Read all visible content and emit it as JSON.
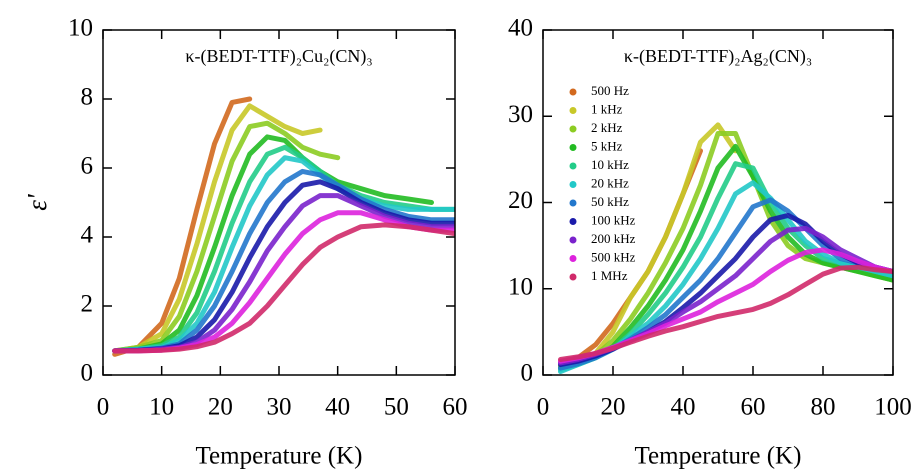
{
  "chart_data": [
    {
      "type": "line",
      "title": "κ-(BEDT-TTF)₂Cu₂(CN)₃",
      "xlabel": "Temperature (K)",
      "ylabel": "ε'",
      "xlim": [
        0,
        60
      ],
      "ylim": [
        0,
        10
      ],
      "xticks": [
        0,
        10,
        20,
        30,
        40,
        50,
        60
      ],
      "yticks": [
        0,
        2,
        4,
        6,
        8,
        10
      ],
      "x": [
        2,
        6,
        10,
        13,
        16,
        19,
        22,
        25,
        28,
        31,
        34,
        37,
        40,
        44,
        48,
        52,
        56,
        60
      ],
      "series": [
        {
          "color": "#d2691e",
          "values": [
            0.6,
            0.8,
            1.5,
            2.8,
            4.8,
            6.7,
            7.9,
            8.0,
            null,
            null,
            null,
            null,
            null,
            null,
            null,
            null,
            null,
            null
          ]
        },
        {
          "color": "#c8c828",
          "values": [
            0.7,
            0.8,
            1.2,
            2.2,
            3.8,
            5.6,
            7.1,
            7.8,
            7.5,
            7.2,
            7.0,
            7.1,
            null,
            null,
            null,
            null,
            null,
            null
          ]
        },
        {
          "color": "#8ccc22",
          "values": [
            0.7,
            0.8,
            1.0,
            1.7,
            3.0,
            4.6,
            6.2,
            7.2,
            7.3,
            7.0,
            6.6,
            6.4,
            6.3,
            null,
            null,
            null,
            null,
            null
          ]
        },
        {
          "color": "#22bb22",
          "values": [
            0.7,
            0.75,
            0.9,
            1.3,
            2.3,
            3.7,
            5.2,
            6.4,
            6.9,
            6.8,
            6.3,
            5.9,
            5.6,
            5.4,
            5.2,
            5.1,
            5.0,
            null
          ]
        },
        {
          "color": "#22cc88",
          "values": [
            0.7,
            0.75,
            0.85,
            1.1,
            1.8,
            3.0,
            4.4,
            5.6,
            6.4,
            6.6,
            6.3,
            5.9,
            5.5,
            5.2,
            5.0,
            4.9,
            4.8,
            4.8
          ]
        },
        {
          "color": "#22c8c8",
          "values": [
            0.7,
            0.75,
            0.8,
            1.0,
            1.5,
            2.4,
            3.7,
            4.9,
            5.8,
            6.3,
            6.2,
            5.8,
            5.4,
            5.1,
            4.9,
            4.8,
            4.8,
            4.8
          ]
        },
        {
          "color": "#2277cc",
          "values": [
            0.7,
            0.72,
            0.78,
            0.9,
            1.3,
            2.0,
            3.0,
            4.1,
            5.0,
            5.6,
            5.9,
            5.8,
            5.5,
            5.1,
            4.8,
            4.6,
            4.5,
            4.5
          ]
        },
        {
          "color": "#1a1aaa",
          "values": [
            0.7,
            0.72,
            0.76,
            0.85,
            1.1,
            1.6,
            2.4,
            3.4,
            4.3,
            5.0,
            5.5,
            5.6,
            5.4,
            5.0,
            4.7,
            4.5,
            4.4,
            4.4
          ]
        },
        {
          "color": "#7a22cc",
          "values": [
            0.7,
            0.7,
            0.75,
            0.8,
            0.95,
            1.3,
            1.9,
            2.7,
            3.6,
            4.3,
            4.9,
            5.2,
            5.2,
            4.9,
            4.6,
            4.4,
            4.3,
            4.3
          ]
        },
        {
          "color": "#dd22dd",
          "values": [
            0.7,
            0.7,
            0.72,
            0.78,
            0.88,
            1.1,
            1.5,
            2.1,
            2.8,
            3.5,
            4.1,
            4.5,
            4.7,
            4.7,
            4.5,
            4.3,
            4.2,
            4.2
          ]
        },
        {
          "color": "#d02a6a",
          "values": [
            0.7,
            0.7,
            0.72,
            0.75,
            0.82,
            0.95,
            1.2,
            1.5,
            2.0,
            2.6,
            3.2,
            3.7,
            4.0,
            4.3,
            4.35,
            4.3,
            4.2,
            4.1
          ]
        }
      ]
    },
    {
      "type": "line",
      "title": "κ-(BEDT-TTF)₂Ag₂(CN)₃",
      "xlabel": "Temperature (K)",
      "xlim": [
        0,
        100
      ],
      "ylim": [
        0,
        40
      ],
      "xticks": [
        0,
        20,
        40,
        60,
        80,
        100
      ],
      "yticks": [
        0,
        10,
        20,
        30,
        40
      ],
      "x": [
        5,
        10,
        15,
        20,
        25,
        30,
        35,
        40,
        45,
        50,
        55,
        60,
        65,
        70,
        75,
        80,
        85,
        90,
        95,
        100
      ],
      "series": [
        {
          "name": "500 Hz",
          "color": "#d2691e",
          "values": [
            1.5,
            2,
            3.5,
            6,
            9,
            12,
            16,
            21,
            26,
            null,
            null,
            null,
            null,
            null,
            null,
            null,
            null,
            null,
            null,
            null
          ]
        },
        {
          "name": "1 kHz",
          "color": "#c8c828",
          "values": [
            1.0,
            1.5,
            2.5,
            5,
            9,
            12,
            16,
            21,
            27,
            29,
            26,
            null,
            null,
            null,
            null,
            null,
            null,
            null,
            null,
            null
          ]
        },
        {
          "name": "2 kHz",
          "color": "#8ccc22",
          "values": [
            1.0,
            1.5,
            2.3,
            4,
            6.5,
            9.5,
            13,
            17,
            22,
            28,
            28,
            23,
            18,
            15,
            13.5,
            13,
            12.5,
            12,
            11.5,
            11
          ]
        },
        {
          "name": "5 kHz",
          "color": "#22bb22",
          "values": [
            0.8,
            1.3,
            2,
            3.3,
            5.5,
            8,
            11,
            14.5,
            19,
            24,
            26.5,
            23,
            19,
            16,
            14,
            13,
            12.5,
            12,
            11.5,
            11
          ]
        },
        {
          "name": "10 kHz",
          "color": "#22cc88",
          "values": [
            0.6,
            1.2,
            2,
            3,
            4.8,
            7,
            9.5,
            12.5,
            16,
            20.5,
            24.5,
            24,
            20,
            17,
            15,
            13.5,
            13,
            12.5,
            12,
            11.5
          ]
        },
        {
          "name": "20 kHz",
          "color": "#22c8c8",
          "values": [
            0.4,
            1.2,
            2,
            3,
            4.5,
            6,
            8,
            10.5,
            13.5,
            17,
            21,
            22.3,
            20.5,
            18,
            15.5,
            14,
            13,
            12.5,
            12,
            11.5
          ]
        },
        {
          "name": "50 kHz",
          "color": "#2277cc",
          "values": [
            0.8,
            1.3,
            2,
            3,
            4.2,
            5.5,
            7,
            9,
            11,
            13.5,
            16.5,
            19.5,
            20.3,
            19,
            17,
            15,
            13.5,
            13,
            12.5,
            12
          ]
        },
        {
          "name": "100 kHz",
          "color": "#1a1aaa",
          "values": [
            1.2,
            1.6,
            2.2,
            3,
            4,
            5,
            6.2,
            7.8,
            9.5,
            11.5,
            13.5,
            16,
            18,
            18.5,
            17.5,
            15.5,
            14,
            13,
            12.5,
            12
          ]
        },
        {
          "name": "200 kHz",
          "color": "#7a22cc",
          "values": [
            1.4,
            1.8,
            2.4,
            3.1,
            4,
            5,
            6,
            7.3,
            8.5,
            10,
            11.5,
            13.5,
            15.5,
            16.8,
            17,
            16,
            14.5,
            13.5,
            12.5,
            12
          ]
        },
        {
          "name": "500 kHz",
          "color": "#dd22dd",
          "values": [
            1.6,
            2,
            2.5,
            3.2,
            4,
            4.8,
            5.7,
            6.5,
            7.3,
            8.5,
            9.5,
            10.5,
            12,
            13.3,
            14.2,
            14.5,
            14,
            13.2,
            12.5,
            12
          ]
        },
        {
          "name": "1 MHz",
          "color": "#d02a6a",
          "values": [
            1.8,
            2.1,
            2.5,
            3.1,
            3.8,
            4.5,
            5.1,
            5.6,
            6.2,
            6.8,
            7.2,
            7.6,
            8.3,
            9.3,
            10.5,
            11.7,
            12.4,
            12.5,
            12.2,
            12
          ]
        }
      ]
    }
  ]
}
